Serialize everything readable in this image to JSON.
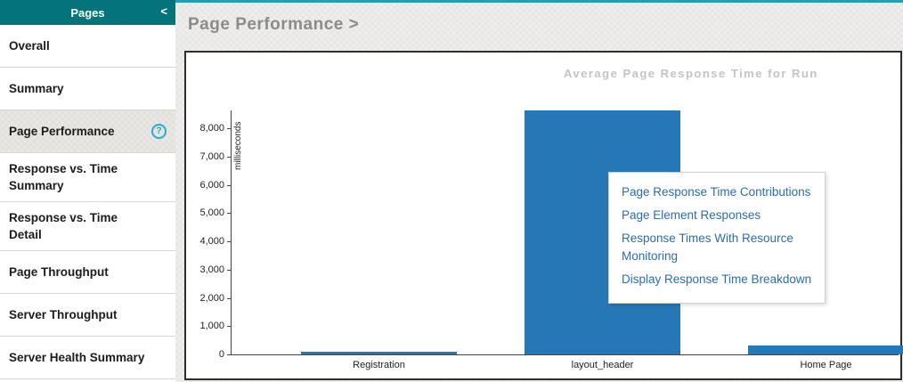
{
  "sidebar": {
    "header": {
      "title": "Pages",
      "collapse_icon": "<"
    },
    "help_icon_glyph": "?",
    "items": [
      {
        "label": "Overall",
        "selected": false,
        "has_help": false
      },
      {
        "label": "Summary",
        "selected": false,
        "has_help": false
      },
      {
        "label": "Page Performance",
        "selected": true,
        "has_help": true
      },
      {
        "label": "Response vs. Time Summary",
        "selected": false,
        "has_help": false
      },
      {
        "label": "Response vs. Time Detail",
        "selected": false,
        "has_help": false
      },
      {
        "label": "Page Throughput",
        "selected": false,
        "has_help": false
      },
      {
        "label": "Server Throughput",
        "selected": false,
        "has_help": false
      },
      {
        "label": "Server Health Summary",
        "selected": false,
        "has_help": false
      }
    ]
  },
  "main": {
    "breadcrumb": "Page Performance >"
  },
  "popup_menu": {
    "items": [
      "Page Response Time Contributions",
      "Page Element Responses",
      "Response Times With Resource Monitoring",
      "Display Response Time Breakdown"
    ]
  },
  "chart_data": {
    "type": "bar",
    "title": "Average Page Response Time for Run",
    "categories": [
      "Registration",
      "layout_header",
      "Home Page"
    ],
    "values": [
      100,
      8640,
      300
    ],
    "xlabel": "",
    "ylabel": "milliseconds",
    "ylim": [
      0,
      8640
    ],
    "yticks": [
      0,
      1000,
      2000,
      3000,
      4000,
      5000,
      6000,
      7000,
      8000
    ],
    "ytick_labels": [
      "0",
      "1,000",
      "2,000",
      "3,000",
      "4,000",
      "5,000",
      "6,000",
      "7,000",
      "8,000"
    ],
    "grid": false,
    "legend": null,
    "bar_color": "#2677b5"
  },
  "colors": {
    "sidebar_header_teal": "#04737a",
    "top_strip_cyan": "#2b9ab8",
    "bar_blue": "#2677b5",
    "link_blue": "#2a6db5",
    "help_cyan": "#29abc9",
    "title_gray": "#8b8b8b",
    "chart_title_gray": "#c4c4c4"
  }
}
